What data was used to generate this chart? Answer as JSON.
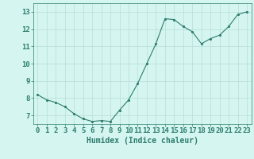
{
  "x": [
    0,
    1,
    2,
    3,
    4,
    5,
    6,
    7,
    8,
    9,
    10,
    11,
    12,
    13,
    14,
    15,
    16,
    17,
    18,
    19,
    20,
    21,
    22,
    23
  ],
  "y": [
    8.2,
    7.9,
    7.75,
    7.5,
    7.1,
    6.8,
    6.65,
    6.7,
    6.65,
    7.3,
    7.9,
    8.85,
    10.0,
    11.15,
    12.6,
    12.55,
    12.15,
    11.85,
    11.15,
    11.45,
    11.65,
    12.15,
    12.85,
    13.0
  ],
  "line_color": "#2e7d6e",
  "marker_color": "#2e7d6e",
  "bg_color": "#d4f5f0",
  "grid_color": "#b8ddd8",
  "xlabel": "Humidex (Indice chaleur)",
  "xlim": [
    -0.5,
    23.5
  ],
  "ylim": [
    6.5,
    13.5
  ],
  "yticks": [
    7,
    8,
    9,
    10,
    11,
    12,
    13
  ],
  "xticks": [
    0,
    1,
    2,
    3,
    4,
    5,
    6,
    7,
    8,
    9,
    10,
    11,
    12,
    13,
    14,
    15,
    16,
    17,
    18,
    19,
    20,
    21,
    22,
    23
  ],
  "tick_color": "#2e7d6e",
  "label_color": "#2e7d6e",
  "font_size": 6.5
}
